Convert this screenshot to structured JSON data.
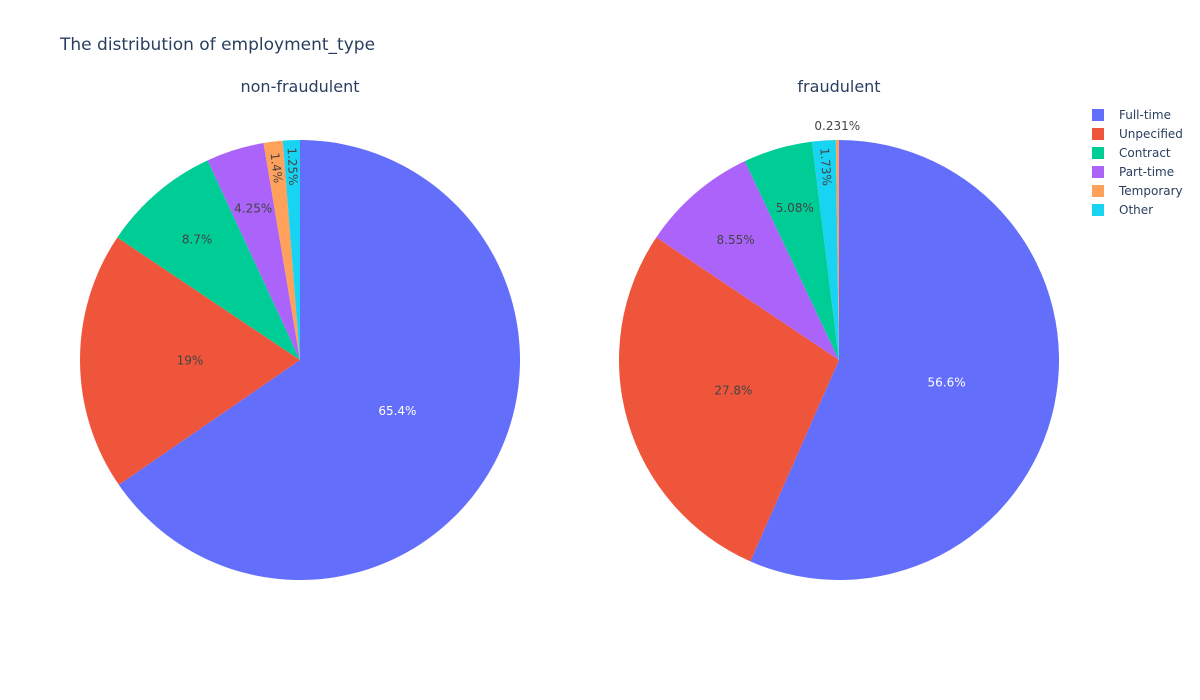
{
  "chart_data": {
    "type": "pie",
    "title": "The distribution of employment_type",
    "legend_position": "top-right",
    "categories": [
      "Full-time",
      "Unpecified",
      "Contract",
      "Part-time",
      "Temporary",
      "Other"
    ],
    "colors": {
      "Full-time": "#636efa",
      "Unpecified": "#ef553b",
      "Contract": "#00cc96",
      "Part-time": "#ab63fa",
      "Temporary": "#ffa15a",
      "Other": "#19d3f3"
    },
    "pies": [
      {
        "subtitle": "non-fraudulent",
        "slices": [
          {
            "label": "Full-time",
            "value": 65.4,
            "text": "65.4%"
          },
          {
            "label": "Unpecified",
            "value": 19.0,
            "text": "19%"
          },
          {
            "label": "Contract",
            "value": 8.7,
            "text": "8.7%"
          },
          {
            "label": "Part-time",
            "value": 4.25,
            "text": "4.25%"
          },
          {
            "label": "Temporary",
            "value": 1.4,
            "text": "1.4%"
          },
          {
            "label": "Other",
            "value": 1.25,
            "text": "1.25%"
          }
        ]
      },
      {
        "subtitle": "fraudulent",
        "slices": [
          {
            "label": "Full-time",
            "value": 56.6,
            "text": "56.6%"
          },
          {
            "label": "Unpecified",
            "value": 27.8,
            "text": "27.8%"
          },
          {
            "label": "Part-time",
            "value": 8.55,
            "text": "8.55%"
          },
          {
            "label": "Contract",
            "value": 5.08,
            "text": "5.08%"
          },
          {
            "label": "Other",
            "value": 1.73,
            "text": "1.73%"
          },
          {
            "label": "Temporary",
            "value": 0.231,
            "text": "0.231%"
          }
        ]
      }
    ]
  }
}
